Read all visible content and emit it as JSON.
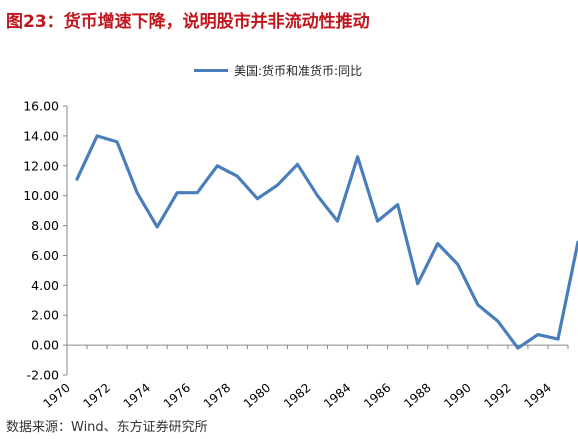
{
  "figure_title": "图23：货币增速下降，说明股市并非流动性推动",
  "source": "数据来源：Wind、东方证券研究所",
  "colors": {
    "title": "#c0161e",
    "series": "#4a7ebb"
  },
  "chart_data": {
    "type": "line",
    "title": "",
    "xlabel": "",
    "ylabel": "",
    "legend": "top-center",
    "grid": false,
    "ylim": [
      -2,
      16
    ],
    "xlim": [
      1970,
      1995
    ],
    "y_ticks": [
      "-2.00",
      "0.00",
      "2.00",
      "4.00",
      "6.00",
      "8.00",
      "10.00",
      "12.00",
      "14.00",
      "16.00"
    ],
    "x_ticks": [
      "1970",
      "1972",
      "1974",
      "1976",
      "1978",
      "1980",
      "1982",
      "1984",
      "1986",
      "1988",
      "1990",
      "1992",
      "1994"
    ],
    "series": [
      {
        "name": "美国:货币和准货币:同比",
        "x": [
          1970.5,
          1971.5,
          1972.5,
          1973.5,
          1974.5,
          1975.5,
          1976.5,
          1977.5,
          1978.5,
          1979.5,
          1980.5,
          1981.5,
          1982.5,
          1983.5,
          1984.5,
          1985.5,
          1986.5,
          1987.5,
          1988.5,
          1989.5,
          1990.5,
          1991.5,
          1992.5,
          1993.5,
          1994.5,
          1995.5
        ],
        "values": [
          11.1,
          14.0,
          13.6,
          10.2,
          7.9,
          10.2,
          10.2,
          12.0,
          11.3,
          9.8,
          10.7,
          12.1,
          10.0,
          8.3,
          12.6,
          8.3,
          9.4,
          4.1,
          6.8,
          5.4,
          2.7,
          1.6,
          -0.2,
          0.7,
          0.4,
          6.9
        ]
      }
    ]
  }
}
